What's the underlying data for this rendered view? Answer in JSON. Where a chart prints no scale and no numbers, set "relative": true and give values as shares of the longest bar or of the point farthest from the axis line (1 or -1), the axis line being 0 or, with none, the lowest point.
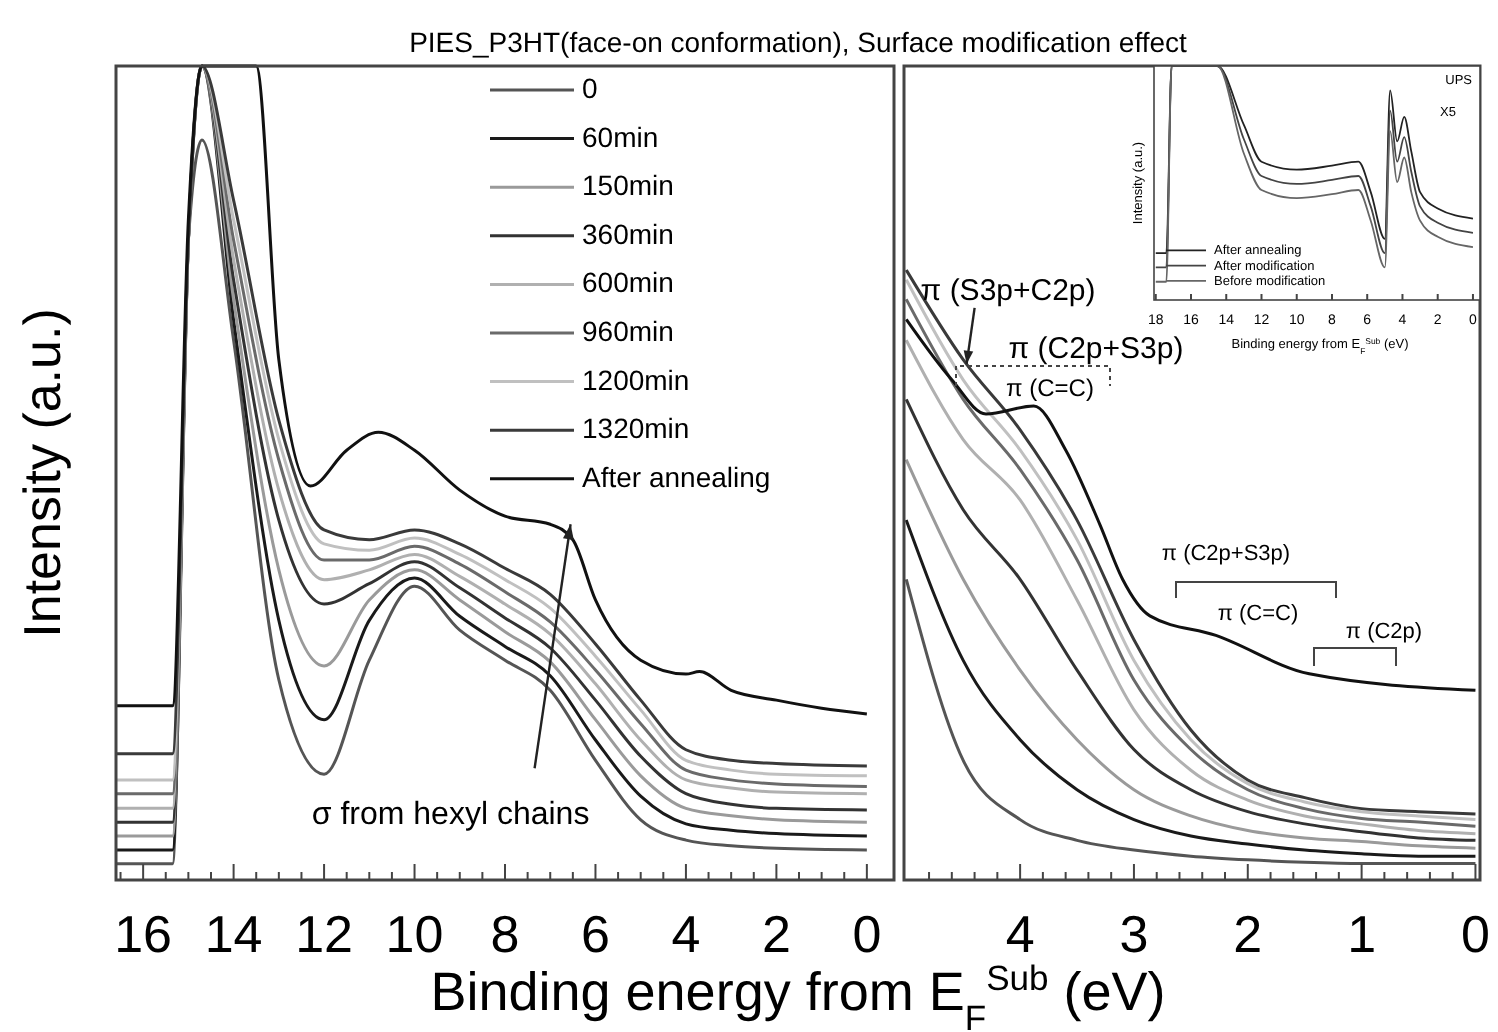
{
  "chart_data": [
    {
      "type": "line",
      "title": "PIES_P3HT(face-on conformation), Surface modification effect",
      "xlabel": "Binding energy from E$_{F}$$^{Sub}$ (eV)",
      "ylabel": "Intensity (a.u.)",
      "relative": true,
      "legend": "top right",
      "xlim": [
        16.6,
        -0.6
      ],
      "xticks": [
        16,
        14,
        12,
        10,
        8,
        6,
        4,
        2,
        0,
        {
          "value": 16.5,
          "label": null
        },
        {
          "value": 15.5,
          "label": null
        },
        {
          "value": 15,
          "label": null
        },
        {
          "value": 14.5,
          "label": null
        },
        {
          "value": 13.5,
          "label": null
        },
        {
          "value": 13,
          "label": null
        },
        {
          "value": 12.5,
          "label": null
        },
        {
          "value": 11.5,
          "label": null
        },
        {
          "value": 11,
          "label": null
        },
        {
          "value": 10.5,
          "label": null
        },
        {
          "value": 9.5,
          "label": null
        },
        {
          "value": 9,
          "label": null
        },
        {
          "value": 8.5,
          "label": null
        },
        {
          "value": 7.5,
          "label": null
        },
        {
          "value": 7,
          "label": null
        },
        {
          "value": 6.5,
          "label": null
        },
        {
          "value": 5.5,
          "label": null
        },
        {
          "value": 5,
          "label": null
        },
        {
          "value": 4.5,
          "label": null
        },
        {
          "value": 3.5,
          "label": null
        },
        {
          "value": 3,
          "label": null
        },
        {
          "value": 2.5,
          "label": null
        },
        {
          "value": 1.5,
          "label": null
        },
        {
          "value": 1,
          "label": null
        },
        {
          "value": 0.5,
          "label": null
        }
      ],
      "x": [
        16.6,
        15.35,
        15.0,
        14.7,
        14.0,
        13.0,
        12.0,
        11.0,
        10.0,
        9.0,
        8.0,
        7.0,
        6.0,
        5.0,
        4.0,
        3.0,
        2.0,
        0
      ],
      "series": [
        {
          "name": "0",
          "color": "#555555",
          "values": [
            0.02,
            0.02,
            0.786,
            0.909,
            0.663,
            0.246,
            0.13,
            0.27,
            0.361,
            0.307,
            0.27,
            0.233,
            0.147,
            0.074,
            0.049,
            0.042,
            0.039,
            0.037
          ]
        },
        {
          "name": "60min",
          "color": "#1a1a1a",
          "values": [
            0.037,
            0.037,
            0.786,
            1,
            0.688,
            0.319,
            0.197,
            0.319,
            0.371,
            0.324,
            0.287,
            0.251,
            0.172,
            0.103,
            0.069,
            0.061,
            0.057,
            0.054
          ]
        },
        {
          "name": "150min",
          "color": "#9a9a9a",
          "values": [
            0.054,
            0.054,
            0.786,
            1,
            0.713,
            0.381,
            0.263,
            0.344,
            0.381,
            0.344,
            0.305,
            0.268,
            0.197,
            0.128,
            0.088,
            0.079,
            0.074,
            0.071
          ]
        },
        {
          "name": "360min",
          "color": "#333333",
          "values": [
            0.071,
            0.071,
            0.786,
            1,
            0.737,
            0.442,
            0.339,
            0.364,
            0.391,
            0.359,
            0.322,
            0.285,
            0.221,
            0.152,
            0.106,
            0.093,
            0.088,
            0.086
          ]
        },
        {
          "name": "600min",
          "color": "#b0b0b0",
          "values": [
            0.088,
            0.088,
            0.786,
            1,
            0.762,
            0.479,
            0.369,
            0.381,
            0.4,
            0.373,
            0.339,
            0.302,
            0.241,
            0.172,
            0.123,
            0.113,
            0.108,
            0.106
          ]
        },
        {
          "name": "960min",
          "color": "#6a6a6a",
          "values": [
            0.106,
            0.106,
            0.786,
            1,
            0.786,
            0.516,
            0.393,
            0.393,
            0.41,
            0.388,
            0.354,
            0.317,
            0.258,
            0.192,
            0.135,
            0.123,
            0.118,
            0.115
          ]
        },
        {
          "name": "1200min",
          "color": "#c0c0c0",
          "values": [
            0.123,
            0.123,
            0.786,
            1,
            0.811,
            0.541,
            0.413,
            0.405,
            0.42,
            0.4,
            0.369,
            0.334,
            0.275,
            0.209,
            0.147,
            0.135,
            0.13,
            0.128
          ]
        },
        {
          "name": "1320min",
          "color": "#3a3a3a",
          "values": [
            0.155,
            0.155,
            0.786,
            1,
            0.835,
            0.565,
            0.43,
            0.418,
            0.43,
            0.413,
            0.383,
            0.351,
            0.29,
            0.221,
            0.16,
            0.147,
            0.143,
            0.14
          ]
        },
        {
          "name": "After annealing",
          "color": "#111111",
          "x": [
            16.6,
            15.35,
            15.0,
            14.7,
            13.5,
            13.0,
            12.3,
            11.5,
            10.8,
            10,
            9,
            8,
            7,
            6.5,
            6,
            5,
            4,
            3.7,
            3,
            2,
            1,
            0
          ],
          "values": [
            0.214,
            0.214,
            0.811,
            1,
            1,
            0.639,
            0.484,
            0.528,
            0.55,
            0.528,
            0.479,
            0.447,
            0.437,
            0.418,
            0.344,
            0.27,
            0.253,
            0.256,
            0.233,
            0.221,
            0.211,
            0.204
          ]
        }
      ],
      "annotations": [
        {
          "text": "σ from hexyl chains",
          "x": 6.55,
          "y": 0.437
        }
      ]
    },
    {
      "type": "line",
      "relative": true,
      "xlim": [
        5.02,
        -0.04
      ],
      "xticks": [
        4,
        3,
        2,
        1,
        0,
        {
          "value": 4.8,
          "label": null
        },
        {
          "value": 4.6,
          "label": null
        },
        {
          "value": 4.4,
          "label": null
        },
        {
          "value": 4.2,
          "label": null
        },
        {
          "value": 3.8,
          "label": null
        },
        {
          "value": 3.6,
          "label": null
        },
        {
          "value": 3.4,
          "label": null
        },
        {
          "value": 3.2,
          "label": null
        },
        {
          "value": 2.8,
          "label": null
        },
        {
          "value": 2.6,
          "label": null
        },
        {
          "value": 2.4,
          "label": null
        },
        {
          "value": 2.2,
          "label": null
        },
        {
          "value": 1.8,
          "label": null
        },
        {
          "value": 1.6,
          "label": null
        },
        {
          "value": 1.4,
          "label": null
        },
        {
          "value": 1.2,
          "label": null
        },
        {
          "value": 0.8,
          "label": null
        },
        {
          "value": 0.6,
          "label": null
        },
        {
          "value": 0.4,
          "label": null
        },
        {
          "value": 0.2,
          "label": null
        }
      ],
      "x": [
        5,
        4.5,
        4,
        3.5,
        3,
        2.5,
        2,
        1.5,
        1,
        0.5,
        0
      ],
      "series": [
        {
          "color": "#555555",
          "values": [
            0.493,
            0.196,
            0.099,
            0.065,
            0.049,
            0.039,
            0.033,
            0.029,
            0.027,
            0.027,
            0.027
          ]
        },
        {
          "color": "#1a1a1a",
          "values": [
            0.59,
            0.36,
            0.23,
            0.148,
            0.099,
            0.072,
            0.059,
            0.049,
            0.043,
            0.039,
            0.039
          ]
        },
        {
          "color": "#9a9a9a",
          "values": [
            0.689,
            0.493,
            0.344,
            0.23,
            0.148,
            0.105,
            0.081,
            0.069,
            0.063,
            0.056,
            0.052
          ]
        },
        {
          "color": "#333333",
          "values": [
            0.788,
            0.607,
            0.493,
            0.344,
            0.214,
            0.148,
            0.112,
            0.092,
            0.079,
            0.069,
            0.065
          ]
        },
        {
          "color": "#b0b0b0",
          "values": [
            0.885,
            0.722,
            0.623,
            0.459,
            0.279,
            0.18,
            0.131,
            0.105,
            0.092,
            0.081,
            0.076
          ]
        },
        {
          "color": "#6a6a6a",
          "values": [
            0.952,
            0.788,
            0.673,
            0.525,
            0.328,
            0.214,
            0.148,
            0.117,
            0.101,
            0.095,
            0.088
          ]
        },
        {
          "color": "#c0c0c0",
          "values": [
            0.984,
            0.82,
            0.705,
            0.558,
            0.36,
            0.23,
            0.158,
            0.128,
            0.112,
            0.105,
            0.099
          ]
        },
        {
          "color": "#3a3a3a",
          "values": [
            1,
            0.853,
            0.738,
            0.59,
            0.394,
            0.246,
            0.164,
            0.135,
            0.117,
            0.112,
            0.108
          ]
        },
        {
          "color": "#111111",
          "x": [
            5,
            4.6,
            4.3,
            3.88,
            3.6,
            3.3,
            3.1,
            2.86,
            2.28,
            1.46,
            0
          ],
          "values": [
            0.919,
            0.82,
            0.764,
            0.777,
            0.705,
            0.583,
            0.493,
            0.433,
            0.401,
            0.338,
            0.311
          ]
        }
      ],
      "annotations": [
        {
          "text": "π (S3p+C2p)",
          "x": 4.47,
          "y": 0.846
        },
        "π (C2p+S3p)",
        "π (C=C)",
        "π (C2p+S3p)",
        "π (C=C)",
        "π (C2p)"
      ]
    },
    {
      "type": "line",
      "relative": true,
      "xlabel": "Binding energy from E$_{F}$$^{Sub}$ (eV)",
      "ylabel": "Intensity (a.u.)",
      "legend": "bottom left",
      "xlim": [
        18.1,
        -0.4
      ],
      "xticks": [
        18,
        16,
        14,
        12,
        10,
        8,
        6,
        4,
        2,
        0
      ],
      "x": [
        18,
        17.4,
        17.1,
        14.5,
        13,
        12,
        10,
        8,
        6.5,
        5.8,
        5.0,
        4.7,
        4.3,
        3.9,
        3.5,
        3,
        2,
        0
      ],
      "series": [
        {
          "name": "After annealing",
          "color": "#222222",
          "values": [
            0.2,
            0.2,
            1,
            1,
            0.748,
            0.591,
            0.557,
            0.574,
            0.591,
            0.461,
            0.261,
            0.896,
            0.678,
            0.783,
            0.635,
            0.461,
            0.391,
            0.348
          ]
        },
        {
          "name": "After modification",
          "color": "#444444",
          "values": [
            0.139,
            0.139,
            1,
            1,
            0.687,
            0.53,
            0.496,
            0.513,
            0.53,
            0.4,
            0.2,
            0.809,
            0.591,
            0.696,
            0.548,
            0.4,
            0.33,
            0.287
          ]
        },
        {
          "name": "Before modification",
          "color": "#666666",
          "values": [
            0.078,
            0.078,
            1,
            1,
            0.626,
            0.47,
            0.435,
            0.452,
            0.47,
            0.339,
            0.139,
            0.722,
            0.504,
            0.609,
            0.461,
            0.339,
            0.27,
            0.226
          ]
        }
      ],
      "annotations": [
        "UPS",
        "X5"
      ]
    }
  ]
}
